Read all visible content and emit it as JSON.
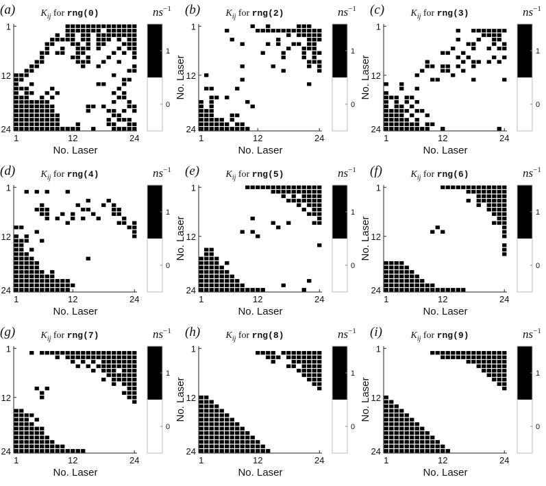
{
  "figure": {
    "colors": {
      "on": "#000000",
      "off": "#ffffff",
      "axis": "#222222",
      "grid_line": "#ffffff"
    },
    "x_label": "No. Laser",
    "y_label": "No. Laser",
    "tick_labels": [
      "1",
      "12",
      "24"
    ],
    "title_symbol": "K",
    "title_subscript": "ij",
    "title_for": "for",
    "unit_base": "ns",
    "unit_exponent": "−1"
  },
  "chart_data": [
    {
      "type": "heatmap",
      "panel": "(a)",
      "title_code": "rng(0)",
      "xlabel": "No. Laser",
      "ylabel": "No. Laser",
      "xlim": [
        1,
        24
      ],
      "ylim": [
        1,
        24
      ],
      "xticks": [
        1,
        12,
        24
      ],
      "yticks": [
        1,
        12,
        24
      ],
      "colorbar": {
        "label": "ns^-1",
        "ticks": [
          0,
          1
        ],
        "range": [
          -0.5,
          1.5
        ]
      },
      "matrix": [
        "000000000011111111111111",
        "000000000011111110111111",
        "000000001011011011111111",
        "000000011111011011101011",
        "000000110001101011000111",
        "000000100100111010001011",
        "000001101100110000010101",
        "000001000001101000100001",
        "000011000000111001001000",
        "000110000000010010000001",
        "001100000000000000000011",
        "111000000000000000010000",
        "110000000000000000000110",
        "100100000000000011000100",
        "111000010000000000001000",
        "101100101000000000010100",
        "111001010000000000001100",
        "111111100000000000010010",
        "111111110000001101000011",
        "111111110000001000110101",
        "111111111000000000011000",
        "111111111000000000101110",
        "111111111000100000110011",
        "111111111111100100011111"
      ]
    },
    {
      "type": "heatmap",
      "panel": "(b)",
      "title_code": "rng(2)",
      "xlabel": "No. Laser",
      "ylabel": "No. Laser",
      "xlim": [
        1,
        24
      ],
      "ylim": [
        1,
        24
      ],
      "xticks": [
        1,
        12,
        24
      ],
      "yticks": [
        1,
        12,
        24
      ],
      "colorbar": {
        "label": "ns^-1",
        "ticks": [
          0,
          1
        ],
        "range": [
          -0.5,
          1.5
        ]
      },
      "matrix": [
        "000000000010010000011100",
        "000001000001111111111111",
        "000000000000000001011111",
        "000000100000000100000111",
        "000000001000010100110110",
        "000000000000000001001110",
        "000000000000100010001011",
        "000000000000000010001010",
        "000000000000000000000111",
        "000000001000001000000101",
        "000000000000000010000001",
        "010000000000000000000000",
        "000000001000000000000000",
        "000000000000000000000100",
        "011000010000000000000000",
        "000000000000000000000000",
        "001101000000000000000000",
        "101000000100000000000000",
        "101000000010000000000000",
        "111000000000000000000000",
        "111000110000000000000000",
        "111110100000000000000000",
        "111111011000000000000000",
        "111111111100000000000000"
      ]
    },
    {
      "type": "heatmap",
      "panel": "(c)",
      "title_code": "rng(3)",
      "xlabel": "No. Laser",
      "ylabel": "No. Laser",
      "xlim": [
        1,
        24
      ],
      "ylim": [
        1,
        24
      ],
      "xticks": [
        1,
        12,
        24
      ],
      "yticks": [
        1,
        12,
        24
      ],
      "colorbar": {
        "label": "ns^-1",
        "ticks": [
          0,
          1
        ],
        "range": [
          -0.5,
          1.5
        ]
      },
      "matrix": [
        "000000000000000000000000",
        "000000000000001001111111",
        "000000000000000000011110",
        "000000000000001000100110",
        "000000000000000011000101",
        "000000000000010001001011",
        "000000000001100100000000",
        "000000000000001010000101",
        "000000001000000101101010",
        "000000001101101001000000",
        "000000010001100100000000",
        "000000100000010000000000",
        "000000000110000001000001",
        "100100000000000000000000",
        "000100100000000000000000",
        "100000000000000000000000",
        "111011000000000000000000",
        "101010100000000000000000",
        "101101000000000000000000",
        "111110110000000000000000",
        "111101001000000000000000",
        "111110100000000000000000",
        "111111101100000000000000",
        "111111111001000000000010"
      ]
    },
    {
      "type": "heatmap",
      "panel": "(d)",
      "title_code": "rng(4)",
      "xlabel": "No. Laser",
      "ylabel": "No. Laser",
      "xlim": [
        1,
        24
      ],
      "ylim": [
        1,
        24
      ],
      "xticks": [
        1,
        12,
        24
      ],
      "yticks": [
        1,
        12,
        24
      ],
      "colorbar": {
        "label": "ns^-1",
        "ticks": [
          0,
          1
        ],
        "range": [
          -0.5,
          1.5
        ]
      },
      "matrix": [
        "000000000000000000000000",
        "001010100010000000000000",
        "000000000000000000000000",
        "000000000000001000100000",
        "000001000000100001010000",
        "000011100000011000011000",
        "000001100101000100011000",
        "000000101001010010000100",
        "000000000010000000001101",
        "110000000000000000000011",
        "000010000000000000000001",
        "101000000000000000000001",
        "111001000000000000000000",
        "110000000000000000000000",
        "110100000000000000000000",
        "111000000000000000000000",
        "111100000000001000000000",
        "111110000000000000000000",
        "111110000000000000000000",
        "111111010000000000000000",
        "111111110000000000000000",
        "111111111110000000000000",
        "111111111111000000000000",
        "111111111110000000000000"
      ]
    },
    {
      "type": "heatmap",
      "panel": "(e)",
      "title_code": "rng(5)",
      "xlabel": "No. Laser",
      "ylabel": "No. Laser",
      "xlim": [
        1,
        24
      ],
      "ylim": [
        1,
        24
      ],
      "xticks": [
        1,
        12,
        24
      ],
      "yticks": [
        1,
        12,
        24
      ],
      "colorbar": {
        "label": "ns^-1",
        "ticks": [
          0,
          1
        ],
        "range": [
          -0.5,
          1.5
        ]
      },
      "matrix": [
        "000000000111111111111111",
        "000000000000001111111111",
        "000000000000000010101111",
        "000000000000000001111111",
        "000000000000000000010111",
        "000000000000000000001011",
        "000000000000000000000111",
        "000000000010000000000001",
        "000000000000001001000011",
        "000000000000000100000000",
        "000000001010000000000000",
        "000000000001000000000000",
        "000000000000000000000000",
        "000000000000000000000001",
        "011000000000000000000000",
        "011000000000000000000000",
        "111100000000000000000000",
        "111101000000000000000000",
        "111110000000000000000000",
        "111111000000000000000000",
        "111111100000000000000000",
        "111111110000000000000100",
        "111111111000000010000000",
        "111111111111100000001000"
      ]
    },
    {
      "type": "heatmap",
      "panel": "(f)",
      "title_code": "rng(6)",
      "xlabel": "No. Laser",
      "ylabel": "No. Laser",
      "xlim": [
        1,
        24
      ],
      "ylim": [
        1,
        24
      ],
      "xticks": [
        1,
        12,
        24
      ],
      "yticks": [
        1,
        12,
        24
      ],
      "colorbar": {
        "label": "ns^-1",
        "ticks": [
          0,
          1
        ],
        "range": [
          -0.5,
          1.5
        ]
      },
      "matrix": [
        "000000000001111111111111",
        "000000000000000011111111",
        "000000000000000000111111",
        "000000000000000010111111",
        "000000000000000000101111",
        "000000000000000000001111",
        "000000000000000000000111",
        "000000000000000000000011",
        "000000000000000000000111",
        "000000000010000000000001",
        "000000000101000000000001",
        "000000000000000000000001",
        "000000000000000000000000",
        "000000000000000000000001",
        "000000000000000000000001",
        "000000000000000000000001",
        "000000000000000000000000",
        "111100000000000000000000",
        "111110000000000000000000",
        "111111000000000000000000",
        "111111100000000000000000",
        "111111110000000000000000",
        "111111111100000000000000",
        "111111111111111100000000"
      ]
    },
    {
      "type": "heatmap",
      "panel": "(g)",
      "title_code": "rng(7)",
      "xlabel": "No. Laser",
      "ylabel": "No. Laser",
      "xlim": [
        1,
        24
      ],
      "ylim": [
        1,
        24
      ],
      "xticks": [
        1,
        12,
        24
      ],
      "yticks": [
        1,
        12,
        24
      ],
      "colorbar": {
        "label": "ns^-1",
        "ticks": [
          0,
          1
        ],
        "range": [
          -0.5,
          1.5
        ]
      },
      "matrix": [
        "000000000000000000000000",
        "000101111111111111111111",
        "000000001011111111111111",
        "000000000001010101111111",
        "000000000000101011111111",
        "000000000000000101110111",
        "000000000000000000111111",
        "000000000000000001011111",
        "000000000000000000010111",
        "000010100000000000000011",
        "000001000000000000000111",
        "000001000000000000000011",
        "000000000000000000000001",
        "000000000000000000000000",
        "110000000000000000000000",
        "111100000000000000000000",
        "111010000000000000000000",
        "111100000000000000000000",
        "111111000000000000000000",
        "111111000000000000000000",
        "111111100000000000000000",
        "111111110000000000000000",
        "111111111100000000000000",
        "111111111111110000000000"
      ]
    },
    {
      "type": "heatmap",
      "panel": "(h)",
      "title_code": "rng(8)",
      "xlabel": "No. Laser",
      "ylabel": "No. Laser",
      "xlim": [
        1,
        24
      ],
      "ylim": [
        1,
        24
      ],
      "xticks": [
        1,
        12,
        24
      ],
      "yticks": [
        1,
        12,
        24
      ],
      "colorbar": {
        "label": "ns^-1",
        "ticks": [
          0,
          1
        ],
        "range": [
          -0.5,
          1.5
        ]
      },
      "matrix": [
        "000000000000000000000000",
        "000000000001111011111111",
        "000000000000011101111111",
        "000000000000001000111111",
        "000000000000000001101111",
        "000000000000000000011111",
        "000000000000000000001111",
        "000000000000000000000111",
        "000000000000000000000011",
        "000000000000000000000001",
        "000000000000000000000000",
        "110000000000000000000000",
        "111000000000000000000000",
        "111100000000000000000000",
        "111110000000000000000000",
        "111111000000000000000000",
        "111111100000000000000000",
        "111111110000000000000000",
        "111111111000000000000000",
        "111111111100000000000000",
        "111111111110000000000000",
        "111111111111000000000000",
        "111111111111100000000000",
        "111111111111110000000000"
      ]
    },
    {
      "type": "heatmap",
      "panel": "(i)",
      "title_code": "rng(9)",
      "xlabel": "No. Laser",
      "ylabel": "No. Laser",
      "xlim": [
        1,
        24
      ],
      "ylim": [
        1,
        24
      ],
      "xticks": [
        1,
        12,
        24
      ],
      "yticks": [
        1,
        12,
        24
      ],
      "colorbar": {
        "label": "ns^-1",
        "ticks": [
          0,
          1
        ],
        "range": [
          -0.5,
          1.5
        ]
      },
      "matrix": [
        "000000000000000000000000",
        "000000000111111111111111",
        "000000000001111111111111",
        "000000000000000011111111",
        "000000000000000000111111",
        "000000000000000000011111",
        "000000000000000000001111",
        "000000000000000000000111",
        "000000000000000000000011",
        "000000000000000000000001",
        "000000000000000000000000",
        "100000000000000000000000",
        "110000000000000000000000",
        "111000000000000000000000",
        "111100000000000000000000",
        "111110000000000000000000",
        "111111000000000000000000",
        "111111100000000000000000",
        "111111110000000000000000",
        "111111111000000000000000",
        "111111111100000000000000",
        "111111111110000000000000",
        "111111111111000000000000",
        "111111111111100000000000"
      ]
    }
  ]
}
